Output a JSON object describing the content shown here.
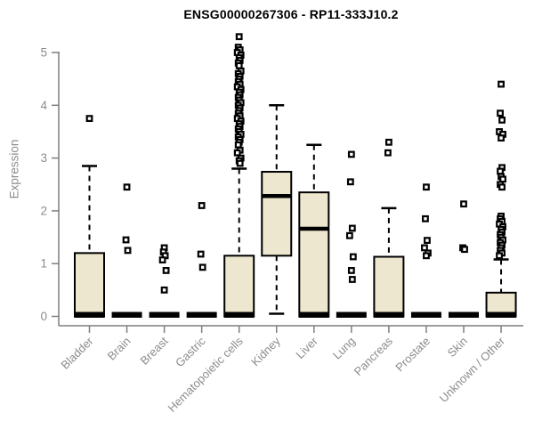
{
  "chart_data": {
    "type": "boxplot",
    "title": "ENSG00000267306 - RP11-333J10.2",
    "ylabel": "Expression",
    "xlabel": "",
    "ylim": [
      0,
      5.45
    ],
    "yticks": [
      0,
      1,
      2,
      3,
      4,
      5
    ],
    "grid": false,
    "legend": "none",
    "colors": {
      "box_fill": "#ece7ce",
      "box_stroke": "#000000",
      "whisker": "#000000",
      "outlier": "#000000",
      "axis": "#7f7f7f",
      "tick_label": "#8c8c8c",
      "title": "#000000",
      "background": "#ffffff"
    },
    "categories": [
      "Bladder",
      "Brain",
      "Breast",
      "Gastric",
      "Hematopoietic cells",
      "Kidney",
      "Liver",
      "Lung",
      "Pancreas",
      "Prostate",
      "Skin",
      "Unknown / Other"
    ],
    "series": [
      {
        "category": "Bladder",
        "q1": 0,
        "median": 0,
        "q3": 1.2,
        "whisker_low": 0,
        "whisker_high": 2.85,
        "outliers": [
          3.75
        ]
      },
      {
        "category": "Brain",
        "q1": 0,
        "median": 0,
        "q3": 0,
        "whisker_low": 0,
        "whisker_high": 0,
        "outliers": [
          2.45,
          1.45,
          1.25
        ]
      },
      {
        "category": "Breast",
        "q1": 0,
        "median": 0,
        "q3": 0,
        "whisker_low": 0,
        "whisker_high": 0,
        "outliers": [
          1.3,
          1.22,
          1.15,
          1.07,
          0.87,
          0.5
        ]
      },
      {
        "category": "Gastric",
        "q1": 0,
        "median": 0,
        "q3": 0,
        "whisker_low": 0,
        "whisker_high": 0,
        "outliers": [
          2.1,
          1.18,
          0.93
        ]
      },
      {
        "category": "Hematopoietic cells",
        "q1": 0,
        "median": 0,
        "q3": 1.15,
        "whisker_low": 0,
        "whisker_high": 2.8,
        "outliers": [
          5.3,
          5.1,
          5.05,
          5.0,
          4.95,
          4.9,
          4.85,
          4.8,
          4.75,
          4.65,
          4.6,
          4.55,
          4.5,
          4.45,
          4.4,
          4.35,
          4.3,
          4.25,
          4.2,
          4.15,
          4.1,
          4.05,
          4.0,
          3.95,
          3.9,
          3.85,
          3.8,
          3.75,
          3.7,
          3.65,
          3.6,
          3.55,
          3.5,
          3.45,
          3.4,
          3.35,
          3.3,
          3.25,
          3.15,
          3.1,
          3.0,
          2.95,
          2.9
        ]
      },
      {
        "category": "Kidney",
        "q1": 1.15,
        "median": 2.28,
        "q3": 2.74,
        "whisker_low": 0.05,
        "whisker_high": 4.0,
        "outliers": []
      },
      {
        "category": "Liver",
        "q1": 0,
        "median": 1.66,
        "q3": 2.35,
        "whisker_low": 0,
        "whisker_high": 3.25,
        "outliers": []
      },
      {
        "category": "Lung",
        "q1": 0,
        "median": 0,
        "q3": 0,
        "whisker_low": 0,
        "whisker_high": 0,
        "outliers": [
          3.07,
          2.55,
          1.67,
          1.53,
          1.13,
          0.87,
          0.7
        ]
      },
      {
        "category": "Pancreas",
        "q1": 0,
        "median": 0,
        "q3": 1.13,
        "whisker_low": 0,
        "whisker_high": 2.05,
        "outliers": [
          3.3,
          3.1
        ]
      },
      {
        "category": "Prostate",
        "q1": 0,
        "median": 0,
        "q3": 0,
        "whisker_low": 0,
        "whisker_high": 0,
        "outliers": [
          2.45,
          1.85,
          1.44,
          1.3,
          1.2,
          1.15
        ]
      },
      {
        "category": "Skin",
        "q1": 0,
        "median": 0,
        "q3": 0,
        "whisker_low": 0,
        "whisker_high": 0,
        "outliers": [
          2.13,
          1.3,
          1.27
        ]
      },
      {
        "category": "Unknown / Other",
        "q1": 0,
        "median": 0,
        "q3": 0.45,
        "whisker_low": 0,
        "whisker_high": 1.08,
        "outliers": [
          4.4,
          3.85,
          3.72,
          3.5,
          3.45,
          3.38,
          2.82,
          2.75,
          2.65,
          2.6,
          2.5,
          2.45,
          1.9,
          1.85,
          1.8,
          1.75,
          1.7,
          1.65,
          1.6,
          1.55,
          1.5,
          1.45,
          1.4,
          1.35,
          1.3,
          1.25,
          1.2,
          1.15
        ]
      }
    ]
  }
}
